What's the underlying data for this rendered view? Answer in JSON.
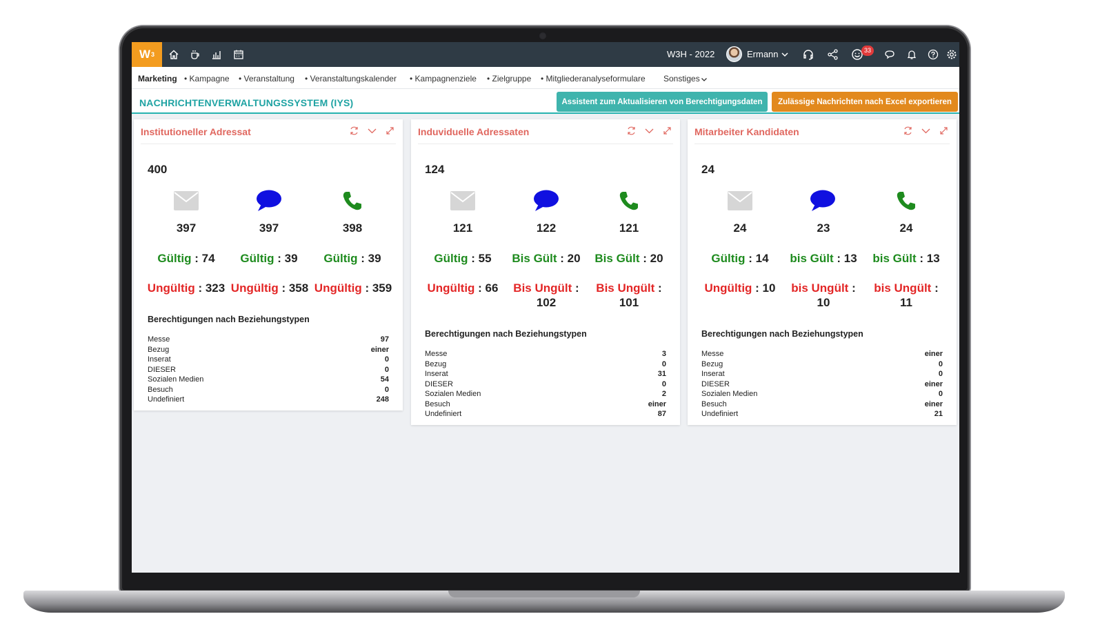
{
  "topbar": {
    "logo": "W",
    "logo_sup": "3",
    "year_label": "W3H - 2022",
    "user_name": "Ermann",
    "notification_count": "33",
    "colors": {
      "bar": "#2f3b45",
      "logo": "#f39c1f"
    }
  },
  "subnav": {
    "items": [
      "Marketing",
      "Kampagne",
      "Veranstaltung",
      "Veranstaltungskalender",
      "Kampagnenziele",
      "Zielgruppe",
      "Mitgliederanalyseformulare",
      "Sonstiges"
    ]
  },
  "page": {
    "title": "NACHRICHTENVERWALTUNGSSYSTEM (IYS)",
    "btn_assistant": "Assistent zum Aktualisieren von Berechtigungsdaten",
    "btn_export": "Zulässige Nachrichten nach Excel exportieren"
  },
  "cards": [
    {
      "title": "Institutioneller Adressat",
      "total": "400",
      "cols": [
        {
          "icon": "envelope-icon",
          "count": "397",
          "valid_label": "Gültig",
          "valid_value": ": 74",
          "invalid_label": "Ungültig",
          "invalid_value": ": 323"
        },
        {
          "icon": "speech-bubble-icon",
          "count": "397",
          "valid_label": "Gültig",
          "valid_value": ": 39",
          "invalid_label": "Ungültig",
          "invalid_value": ": 358"
        },
        {
          "icon": "phone-icon",
          "count": "398",
          "valid_label": "Gültig",
          "valid_value": ": 39",
          "invalid_label": "Ungültig",
          "invalid_value": ": 359"
        }
      ],
      "section_title": "Berechtigungen nach Beziehungstypen",
      "rows": [
        {
          "label": "Messe",
          "value": "97"
        },
        {
          "label": "Bezug",
          "value": "einer"
        },
        {
          "label": "Inserat",
          "value": "0"
        },
        {
          "label": "DIESER",
          "value": "0"
        },
        {
          "label": "Sozialen Medien",
          "value": "54"
        },
        {
          "label": "Besuch",
          "value": "0"
        },
        {
          "label": "Undefiniert",
          "value": "248"
        }
      ]
    },
    {
      "title": "Induviduelle Adressaten",
      "total": "124",
      "cols": [
        {
          "icon": "envelope-icon",
          "count": "121",
          "valid_label": "Gültig",
          "valid_value": ": 55",
          "invalid_label": "Ungültig",
          "invalid_value": ": 66"
        },
        {
          "icon": "speech-bubble-icon",
          "count": "122",
          "valid_label": "Bis Gült",
          "valid_value": ": 20",
          "invalid_label": "Bis Ungült",
          "invalid_value": ":",
          "invalid_value2": "102"
        },
        {
          "icon": "phone-icon",
          "count": "121",
          "valid_label": "Bis Gült",
          "valid_value": ": 20",
          "invalid_label": "Bis Ungült",
          "invalid_value": ":",
          "invalid_value2": "101"
        }
      ],
      "section_title": "Berechtigungen nach Beziehungstypen",
      "rows": [
        {
          "label": "Messe",
          "value": "3"
        },
        {
          "label": "Bezug",
          "value": "0"
        },
        {
          "label": "Inserat",
          "value": "31"
        },
        {
          "label": "DIESER",
          "value": "0"
        },
        {
          "label": "Sozialen Medien",
          "value": "2"
        },
        {
          "label": "Besuch",
          "value": "einer"
        },
        {
          "label": "Undefiniert",
          "value": "87"
        }
      ]
    },
    {
      "title": "Mitarbeiter Kandidaten",
      "total": "24",
      "cols": [
        {
          "icon": "envelope-icon",
          "count": "24",
          "valid_label": "Gültig",
          "valid_value": ": 14",
          "invalid_label": "Ungültig",
          "invalid_value": ": 10"
        },
        {
          "icon": "speech-bubble-icon",
          "count": "23",
          "valid_label": "bis Gült",
          "valid_value": ": 13",
          "invalid_label": "bis Ungült",
          "invalid_value": ":",
          "invalid_value2": "10"
        },
        {
          "icon": "phone-icon",
          "count": "24",
          "valid_label": "bis Gült",
          "valid_value": ": 13",
          "invalid_label": "bis Ungült",
          "invalid_value": ":",
          "invalid_value2": "11"
        }
      ],
      "section_title": "Berechtigungen nach Beziehungstypen",
      "rows": [
        {
          "label": "Messe",
          "value": "einer"
        },
        {
          "label": "Bezug",
          "value": "0"
        },
        {
          "label": "Inserat",
          "value": "0"
        },
        {
          "label": "DIESER",
          "value": "einer"
        },
        {
          "label": "Sozialen Medien",
          "value": "0"
        },
        {
          "label": "Besuch",
          "value": "einer"
        },
        {
          "label": "Undefiniert",
          "value": "21"
        }
      ]
    }
  ],
  "colors": {
    "title_teal": "#1fa3a3",
    "card_title": "#e0675f",
    "valid_green": "#1e8b1e",
    "invalid_red": "#e32626",
    "speech_blue": "#1010e0",
    "phone_green": "#1e8b1e",
    "envelope_gray": "#d6d6d6"
  }
}
